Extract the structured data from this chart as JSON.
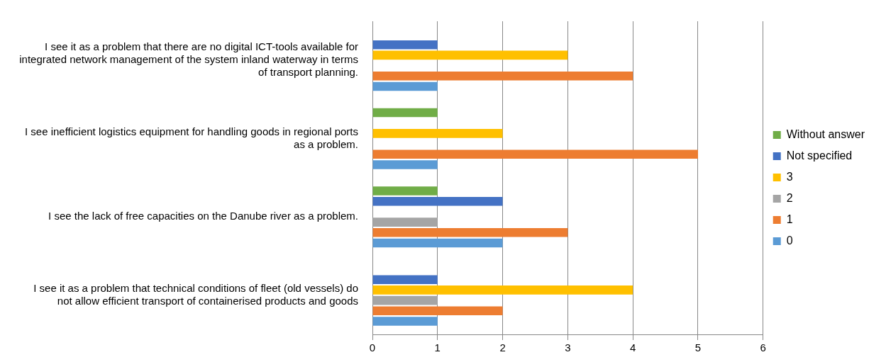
{
  "chart_data": {
    "type": "bar",
    "orientation": "horizontal",
    "categories": [
      "I see it as a problem that there are no digital ICT-tools available for integrated network management of the system inland waterway in terms of transport planning.",
      "I see inefficient logistics equipment for handling goods in regional ports as a problem.",
      "I see the lack of free capacities on the Danube river as a problem.",
      "I see it as a problem that technical conditions of fleet (old vessels) do not allow efficient transport of containerised products and goods"
    ],
    "series": [
      {
        "name": "Without answer",
        "color": "#70ad47",
        "values": [
          null,
          1,
          1,
          null
        ]
      },
      {
        "name": "Not specified",
        "color": "#4472c4",
        "values": [
          1,
          null,
          2,
          1
        ]
      },
      {
        "name": "3",
        "color": "#ffc000",
        "values": [
          3,
          2,
          null,
          4
        ]
      },
      {
        "name": "2",
        "color": "#a5a5a5",
        "values": [
          null,
          null,
          1,
          1
        ]
      },
      {
        "name": "1",
        "color": "#ed7d31",
        "values": [
          4,
          5,
          3,
          2
        ]
      },
      {
        "name": "0",
        "color": "#5b9bd5",
        "values": [
          1,
          1,
          2,
          1
        ]
      }
    ],
    "xlim": [
      0,
      6
    ],
    "xticks": [
      0,
      1,
      2,
      3,
      4,
      5,
      6
    ],
    "grid": "x",
    "legend": "right"
  }
}
